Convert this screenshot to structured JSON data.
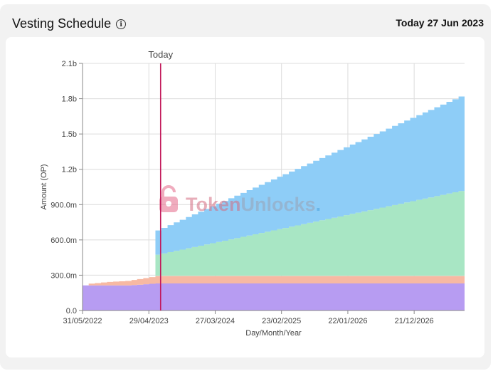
{
  "header": {
    "title": "Vesting Schedule",
    "info_icon": "info-circle-icon",
    "today_label": "Today",
    "today_value": "27 Jun 2023"
  },
  "watermark": {
    "part1": "Token",
    "part2": "Unlocks",
    "dot": "."
  },
  "chart_data": {
    "type": "area",
    "stacked": true,
    "xlabel": "Day/Month/Year",
    "ylabel": "Amount (OP)",
    "ylim": [
      0,
      2100000000
    ],
    "xlim": [
      "2022-05-31",
      "2027-08-31"
    ],
    "x_tick_labels": [
      "31/05/2022",
      "29/04/2023",
      "27/03/2024",
      "23/02/2025",
      "22/01/2026",
      "21/12/2026"
    ],
    "x_tick_dates": [
      "2022-05-31",
      "2023-04-29",
      "2024-03-27",
      "2025-02-23",
      "2026-01-22",
      "2026-12-21"
    ],
    "y_ticks": [
      {
        "value": 0,
        "label": "0.0"
      },
      {
        "value": 300000000,
        "label": "300.0m"
      },
      {
        "value": 600000000,
        "label": "600.0m"
      },
      {
        "value": 900000000,
        "label": "900.0m"
      },
      {
        "value": 1200000000,
        "label": "1.2b"
      },
      {
        "value": 1500000000,
        "label": "1.5b"
      },
      {
        "value": 1800000000,
        "label": "1.8b"
      },
      {
        "value": 2100000000,
        "label": "2.1b"
      }
    ],
    "grid": true,
    "today_marker": {
      "date": "2023-06-27",
      "label": "Today",
      "color": "#c2185b"
    },
    "series": [
      {
        "color": "#b79cf2",
        "points": [
          [
            "2022-05-31",
            213000000
          ],
          [
            "2022-12-31",
            213000000
          ],
          [
            "2023-05-31",
            230000000
          ],
          [
            "2027-08-31",
            230000000
          ]
        ]
      },
      {
        "color": "#f7b9a3",
        "points": [
          [
            "2022-05-31",
            0
          ],
          [
            "2022-06-30",
            15000000
          ],
          [
            "2022-09-30",
            30000000
          ],
          [
            "2022-12-31",
            38000000
          ],
          [
            "2023-05-31",
            62000000
          ],
          [
            "2027-08-31",
            62000000
          ]
        ]
      },
      {
        "color": "#ffb3b3",
        "points": [
          [
            "2022-05-31",
            0
          ],
          [
            "2023-05-31",
            0
          ],
          [
            "2023-05-31",
            2000000
          ],
          [
            "2027-08-31",
            2000000
          ]
        ]
      },
      {
        "color": "#a8e6c4",
        "points": [
          [
            "2022-05-31",
            0
          ],
          [
            "2023-05-30",
            0
          ],
          [
            "2023-05-31",
            180000000
          ],
          [
            "2027-08-31",
            732000000
          ]
        ]
      },
      {
        "color": "#8ecdf7",
        "points": [
          [
            "2022-05-31",
            0
          ],
          [
            "2023-05-30",
            0
          ],
          [
            "2023-05-31",
            205000000
          ],
          [
            "2027-08-31",
            815000000
          ]
        ]
      }
    ]
  }
}
